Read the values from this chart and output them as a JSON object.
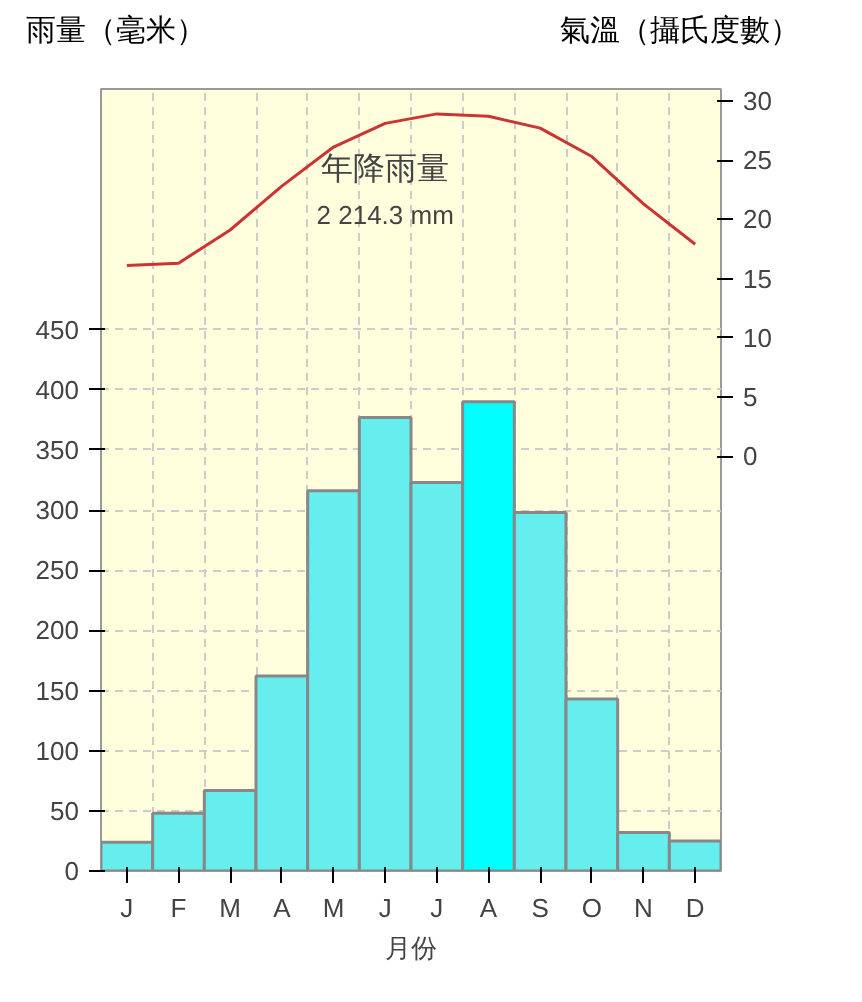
{
  "chart_data": {
    "type": "bar",
    "ylabel": "雨量（毫米）",
    "y2label": "氣溫（攝氏度數）",
    "xlabel": "月份",
    "categories": [
      "J",
      "F",
      "M",
      "A",
      "M",
      "J",
      "J",
      "A",
      "S",
      "O",
      "N",
      "D"
    ],
    "series": [
      {
        "values": [
          24,
          48,
          67,
          162,
          316,
          377,
          323,
          390,
          298,
          143,
          32,
          25
        ],
        "colors": [
          "#66eeee",
          "#66eeee",
          "#66eeee",
          "#66eeee",
          "#66eeee",
          "#66eeee",
          "#66eeee",
          "#00ffff",
          "#66eeee",
          "#66eeee",
          "#66eeee",
          "#66eeee"
        ]
      },
      {
        "type": "line",
        "axis": "y2",
        "color": "#cc3333",
        "values": [
          16.1,
          16.3,
          19.1,
          22.8,
          26.1,
          28.1,
          28.9,
          28.7,
          27.7,
          25.3,
          21.3,
          17.9
        ]
      }
    ],
    "ylim": [
      0,
      650
    ],
    "yticks": [
      0,
      50,
      100,
      150,
      200,
      250,
      300,
      350,
      400,
      450
    ],
    "y2lim": [
      -35,
      31
    ],
    "y2ticks": [
      0,
      5,
      10,
      15,
      20,
      25,
      30
    ],
    "annotations": [
      "年降雨量",
      "2 214.3 mm"
    ],
    "grid": true,
    "marker": "none",
    "line_style": "solid"
  }
}
